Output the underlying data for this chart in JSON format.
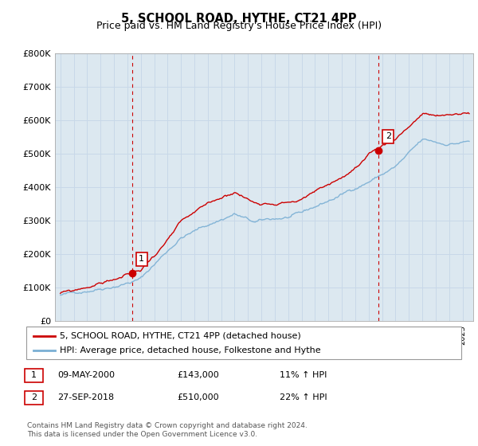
{
  "title": "5, SCHOOL ROAD, HYTHE, CT21 4PP",
  "subtitle": "Price paid vs. HM Land Registry's House Price Index (HPI)",
  "ylabel_ticks": [
    "£0",
    "£100K",
    "£200K",
    "£300K",
    "£400K",
    "£500K",
    "£600K",
    "£700K",
    "£800K"
  ],
  "ytick_values": [
    0,
    100000,
    200000,
    300000,
    400000,
    500000,
    600000,
    700000,
    800000
  ],
  "ylim": [
    0,
    800000
  ],
  "xlim_start": 1994.6,
  "xlim_end": 2025.8,
  "red_color": "#cc0000",
  "blue_color": "#7aafd4",
  "vline_color": "#cc0000",
  "grid_color": "#c8d8e8",
  "bg_color": "#dce8f0",
  "plot_bg": "#dce8f0",
  "marker1_x": 2000.35,
  "marker1_y": 143000,
  "marker2_x": 2018.75,
  "marker2_y": 510000,
  "legend_label1": "5, SCHOOL ROAD, HYTHE, CT21 4PP (detached house)",
  "legend_label2": "HPI: Average price, detached house, Folkestone and Hythe",
  "annotation1_label": "1",
  "annotation2_label": "2",
  "table_row1": [
    "1",
    "09-MAY-2000",
    "£143,000",
    "11% ↑ HPI"
  ],
  "table_row2": [
    "2",
    "27-SEP-2018",
    "£510,000",
    "22% ↑ HPI"
  ],
  "footer": "Contains HM Land Registry data © Crown copyright and database right 2024.\nThis data is licensed under the Open Government Licence v3.0.",
  "title_fontsize": 10.5,
  "subtitle_fontsize": 9
}
